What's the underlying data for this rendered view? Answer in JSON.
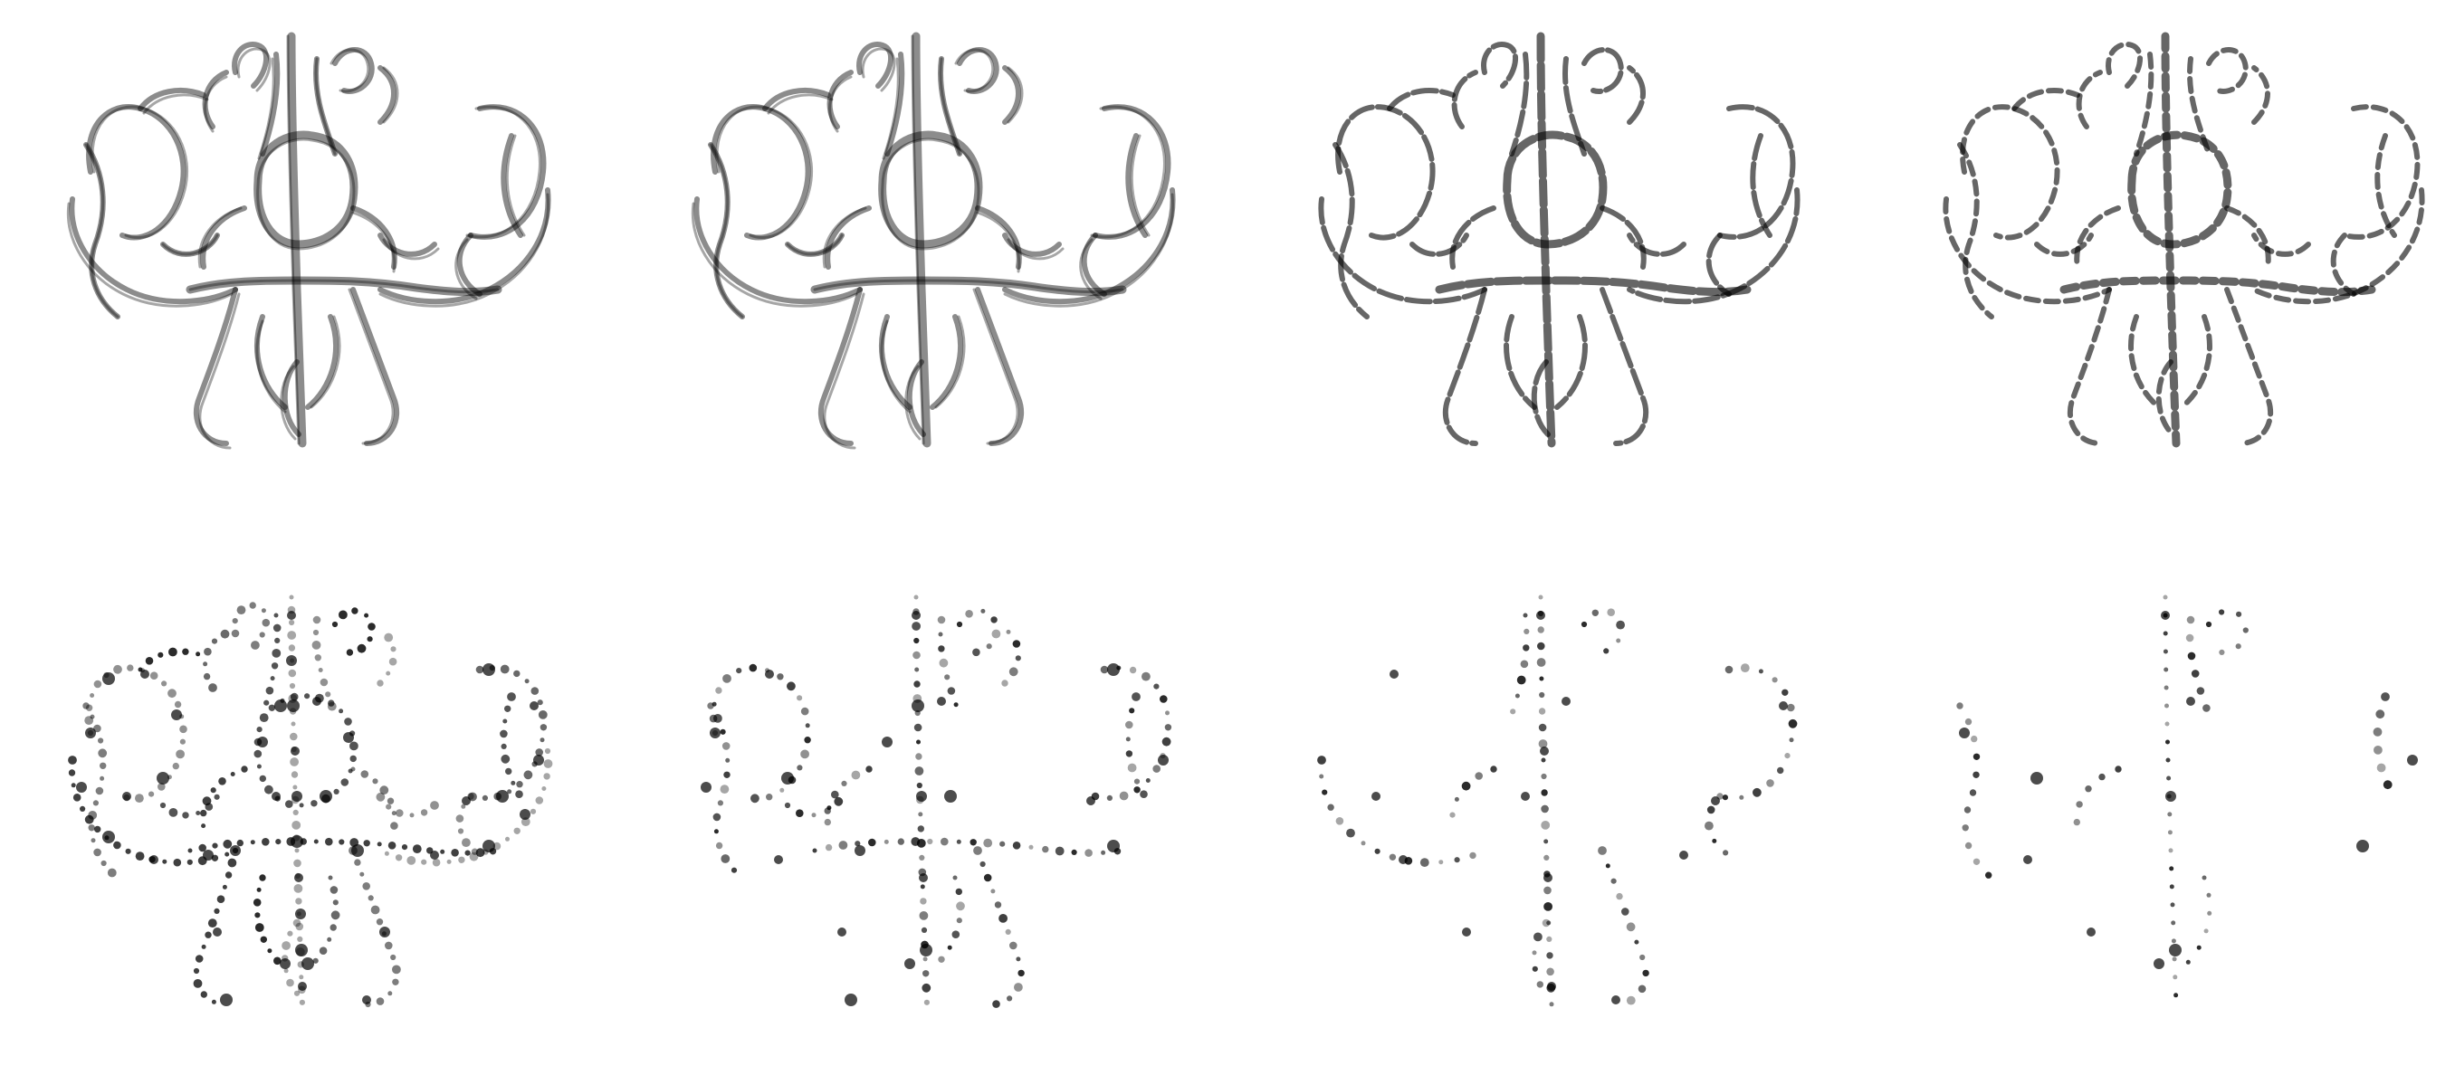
{
  "figure": {
    "rows": 2,
    "columns": 4,
    "panel_count": 8,
    "content": "vessel-tree-renderings",
    "ink_color": "#000000",
    "background_color": "#ffffff"
  },
  "panels": [
    {
      "id": "p1",
      "row": 1,
      "col": 1,
      "style": "dense-tubes",
      "sparsity": 0
    },
    {
      "id": "p2",
      "row": 1,
      "col": 2,
      "style": "dense-tubes",
      "sparsity": 1
    },
    {
      "id": "p3",
      "row": 1,
      "col": 3,
      "style": "tubes-with-gaps",
      "sparsity": 2
    },
    {
      "id": "p4",
      "row": 1,
      "col": 4,
      "style": "tubes-with-gaps",
      "sparsity": 3
    },
    {
      "id": "p5",
      "row": 2,
      "col": 1,
      "style": "dotted",
      "sparsity": 4
    },
    {
      "id": "p6",
      "row": 2,
      "col": 2,
      "style": "dotted",
      "sparsity": 5
    },
    {
      "id": "p7",
      "row": 2,
      "col": 3,
      "style": "sparse-dots",
      "sparsity": 6
    },
    {
      "id": "p8",
      "row": 2,
      "col": 4,
      "style": "sparse-dots",
      "sparsity": 7
    }
  ]
}
